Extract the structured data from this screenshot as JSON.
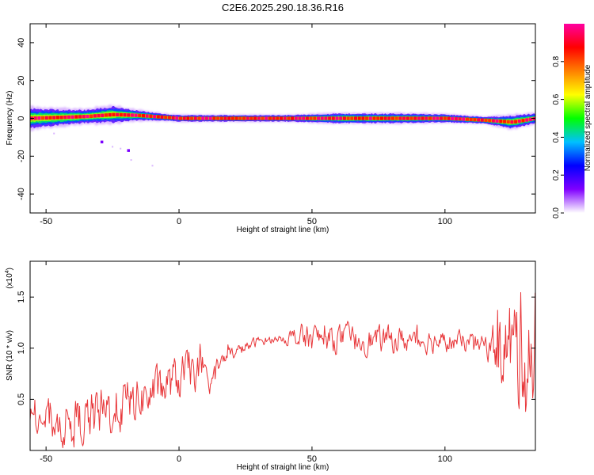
{
  "title": "C2E6.2025.290.18.36.R16",
  "chart_data": [
    {
      "type": "heatmap",
      "xlabel": "Height of straight line (km)",
      "ylabel": "Frequency (Hz)",
      "xlim": [
        -56,
        134
      ],
      "ylim": [
        -50,
        50
      ],
      "x_ticks": [
        -50,
        0,
        50,
        100
      ],
      "x_tick_labels": [
        "-50",
        "0",
        "50",
        "100"
      ],
      "y_ticks": [
        -40,
        -20,
        0,
        20,
        40
      ],
      "y_tick_labels": [
        "-40",
        "-20",
        "0",
        "20",
        "40"
      ],
      "grid": false,
      "colorbar": {
        "label": "Normalized spectral amplitude",
        "range": [
          0,
          1
        ],
        "ticks": [
          0.0,
          0.2,
          0.4,
          0.6,
          0.8
        ],
        "tick_labels": [
          "0.0",
          "0.2",
          "0.4",
          "0.6",
          "0.8"
        ],
        "colors": [
          "#ffffff",
          "#8000ff",
          "#0000ff",
          "#00c0ff",
          "#00ff00",
          "#ffff00",
          "#ff8000",
          "#ff0000",
          "#ff00a0"
        ]
      },
      "band_center_hz": [
        {
          "x": -56,
          "y": 0
        },
        {
          "x": -45,
          "y": 0.5
        },
        {
          "x": -35,
          "y": 1
        },
        {
          "x": -25,
          "y": 2
        },
        {
          "x": -15,
          "y": 1.5
        },
        {
          "x": -5,
          "y": 0.5
        },
        {
          "x": 0,
          "y": 0
        },
        {
          "x": 20,
          "y": 0
        },
        {
          "x": 40,
          "y": 0
        },
        {
          "x": 60,
          "y": 0
        },
        {
          "x": 80,
          "y": 0
        },
        {
          "x": 100,
          "y": 0
        },
        {
          "x": 115,
          "y": -1
        },
        {
          "x": 125,
          "y": -2
        },
        {
          "x": 134,
          "y": 0
        }
      ],
      "band_halfwidth_hz": [
        {
          "x": -56,
          "y": 6
        },
        {
          "x": -45,
          "y": 5
        },
        {
          "x": -35,
          "y": 4
        },
        {
          "x": -25,
          "y": 5
        },
        {
          "x": -15,
          "y": 3
        },
        {
          "x": -5,
          "y": 2
        },
        {
          "x": 0,
          "y": 2
        },
        {
          "x": 40,
          "y": 2
        },
        {
          "x": 60,
          "y": 3
        },
        {
          "x": 80,
          "y": 3
        },
        {
          "x": 100,
          "y": 2.5
        },
        {
          "x": 115,
          "y": 2
        },
        {
          "x": 125,
          "y": 4
        },
        {
          "x": 134,
          "y": 3
        }
      ],
      "outliers": [
        {
          "x": -29,
          "y": -12.5,
          "amplitude": 0.05
        },
        {
          "x": -19,
          "y": -17,
          "amplitude": 0.08
        },
        {
          "x": -22,
          "y": -16,
          "amplitude": 0.02
        },
        {
          "x": -25,
          "y": -15,
          "amplitude": 0.01
        },
        {
          "x": -47,
          "y": -8,
          "amplitude": 0.02
        },
        {
          "x": -18,
          "y": -22,
          "amplitude": 0.01
        },
        {
          "x": -10,
          "y": -25,
          "amplitude": 0.01
        }
      ]
    },
    {
      "type": "line",
      "xlabel": "Height of straight line (km)",
      "ylabel": "SNR (10 * v/v)",
      "y_scale_label": "(x10",
      "y_scale_exp": "4",
      "xlim": [
        -56,
        134
      ],
      "ylim": [
        0,
        1.85
      ],
      "x_ticks": [
        -50,
        0,
        50,
        100
      ],
      "x_tick_labels": [
        "-50",
        "0",
        "50",
        "100"
      ],
      "y_ticks": [
        0.5,
        1.0,
        1.5
      ],
      "y_tick_labels": [
        "0.5",
        "1.0",
        "1.5"
      ],
      "grid": false,
      "series": [
        {
          "name": "SNR",
          "color": "#e8373a",
          "trend": [
            {
              "x": -56,
              "y": 0.35
            },
            {
              "x": -45,
              "y": 0.25
            },
            {
              "x": -35,
              "y": 0.3
            },
            {
              "x": -20,
              "y": 0.45
            },
            {
              "x": -10,
              "y": 0.55
            },
            {
              "x": 0,
              "y": 0.7
            },
            {
              "x": 6,
              "y": 0.8
            },
            {
              "x": 10,
              "y": 0.65
            },
            {
              "x": 18,
              "y": 0.92
            },
            {
              "x": 30,
              "y": 1.07
            },
            {
              "x": 40,
              "y": 1.1
            },
            {
              "x": 50,
              "y": 1.1
            },
            {
              "x": 70,
              "y": 1.08
            },
            {
              "x": 90,
              "y": 1.08
            },
            {
              "x": 110,
              "y": 1.05
            },
            {
              "x": 125,
              "y": 1.0
            },
            {
              "x": 134,
              "y": 1.0
            }
          ],
          "spread": [
            {
              "x": -56,
              "y": 0.15
            },
            {
              "x": -30,
              "y": 0.25
            },
            {
              "x": -10,
              "y": 0.2
            },
            {
              "x": 5,
              "y": 0.2
            },
            {
              "x": 20,
              "y": 0.06
            },
            {
              "x": 38,
              "y": 0.03
            },
            {
              "x": 45,
              "y": 0.12
            },
            {
              "x": 80,
              "y": 0.12
            },
            {
              "x": 115,
              "y": 0.08
            },
            {
              "x": 125,
              "y": 0.5
            },
            {
              "x": 134,
              "y": 0.75
            }
          ]
        }
      ]
    }
  ]
}
